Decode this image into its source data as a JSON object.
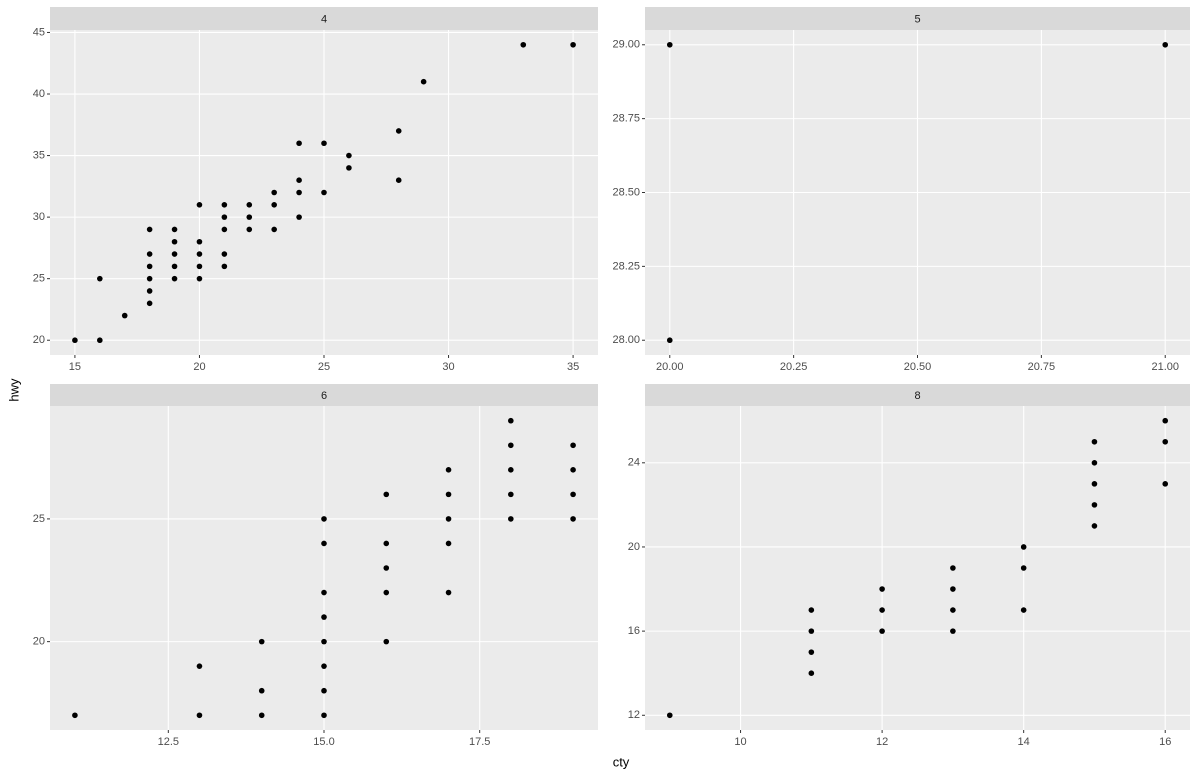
{
  "axis_labels": {
    "x": "cty",
    "y": "hwy"
  },
  "chart_data": [
    {
      "type": "scatter",
      "title": "4",
      "x": [
        15,
        16,
        16,
        17,
        18,
        18,
        18,
        18,
        18,
        18,
        19,
        19,
        19,
        19,
        19,
        20,
        20,
        20,
        20,
        20,
        21,
        21,
        21,
        21,
        21,
        22,
        22,
        22,
        23,
        23,
        23,
        24,
        24,
        24,
        24,
        25,
        25,
        26,
        26,
        28,
        28,
        29,
        33,
        35
      ],
      "y": [
        20,
        20,
        25,
        22,
        23,
        24,
        25,
        26,
        27,
        29,
        25,
        26,
        27,
        28,
        29,
        25,
        26,
        27,
        28,
        31,
        26,
        27,
        29,
        30,
        31,
        29,
        30,
        31,
        29,
        31,
        32,
        30,
        32,
        33,
        36,
        32,
        36,
        34,
        35,
        33,
        37,
        41,
        44,
        44
      ],
      "xlim": [
        14,
        36
      ],
      "ylim": [
        18.8,
        45.2
      ],
      "xticks": [
        15,
        20,
        25,
        30,
        35
      ],
      "yticks": [
        20,
        25,
        30,
        35,
        40,
        45
      ]
    },
    {
      "type": "scatter",
      "title": "5",
      "x": [
        20,
        20,
        21
      ],
      "y": [
        29,
        28,
        29
      ],
      "xlim": [
        19.95,
        21.05
      ],
      "ylim": [
        27.95,
        29.05
      ],
      "xticks": [
        {
          "value": 20,
          "label": "20.00"
        },
        20.25,
        {
          "value": 20.5,
          "label": "20.50"
        },
        20.75,
        {
          "value": 21,
          "label": "21.00"
        }
      ],
      "yticks": [
        {
          "value": 28,
          "label": "28.00"
        },
        28.25,
        {
          "value": 28.5,
          "label": "28.50"
        },
        28.75,
        {
          "value": 29,
          "label": "29.00"
        }
      ]
    },
    {
      "type": "scatter",
      "title": "6",
      "x": [
        11,
        13,
        13,
        14,
        14,
        14,
        15,
        15,
        15,
        15,
        15,
        15,
        15,
        15,
        16,
        16,
        16,
        16,
        16,
        17,
        17,
        17,
        17,
        17,
        18,
        18,
        18,
        18,
        18,
        19,
        19,
        19,
        19
      ],
      "y": [
        17,
        19,
        17,
        20,
        18,
        17,
        25,
        24,
        22,
        21,
        20,
        19,
        18,
        17,
        26,
        24,
        23,
        22,
        20,
        27,
        26,
        25,
        24,
        22,
        29,
        28,
        27,
        26,
        25,
        28,
        27,
        26,
        25
      ],
      "xlim": [
        10.6,
        19.4
      ],
      "ylim": [
        16.4,
        29.6
      ],
      "xticks": [
        12.5,
        {
          "value": 15,
          "label": "15.0"
        },
        17.5
      ],
      "yticks": [
        20,
        25
      ]
    },
    {
      "type": "scatter",
      "title": "8",
      "x": [
        9,
        11,
        11,
        11,
        11,
        12,
        12,
        12,
        13,
        13,
        13,
        13,
        14,
        14,
        14,
        15,
        15,
        15,
        15,
        15,
        16,
        16,
        16
      ],
      "y": [
        12,
        17,
        16,
        15,
        14,
        18,
        17,
        16,
        19,
        18,
        17,
        16,
        20,
        19,
        17,
        25,
        24,
        23,
        22,
        21,
        26,
        25,
        23
      ],
      "xlim": [
        8.65,
        16.35
      ],
      "ylim": [
        11.3,
        26.7
      ],
      "xticks": [
        10,
        12,
        14,
        16
      ],
      "yticks": [
        12,
        16,
        20,
        24
      ]
    }
  ]
}
